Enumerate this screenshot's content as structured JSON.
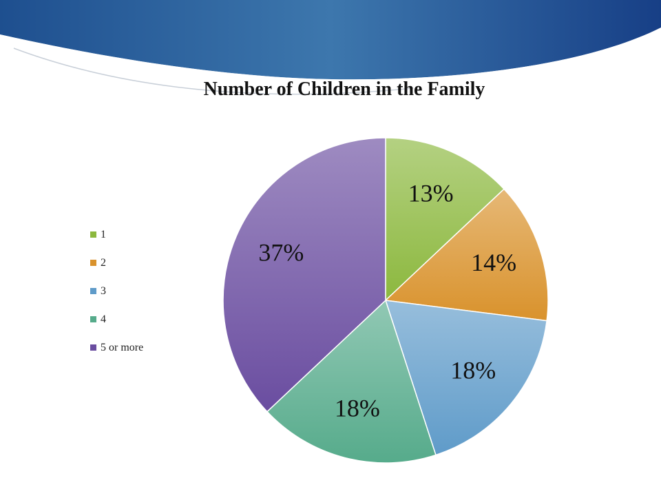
{
  "chart_data": {
    "type": "pie",
    "title": "Number of Children in the Family",
    "categories": [
      "1",
      "2",
      "3",
      "4",
      "5 or more"
    ],
    "values": [
      13,
      14,
      18,
      18,
      37
    ],
    "labels": [
      "13%",
      "14%",
      "18%",
      "18%",
      "37%"
    ],
    "colors": [
      "#8cb83e",
      "#d9922c",
      "#5f9bc9",
      "#56ab8b",
      "#6a4da0"
    ],
    "legend_position": "left",
    "start_angle": "12 o'clock",
    "direction": "clockwise"
  }
}
